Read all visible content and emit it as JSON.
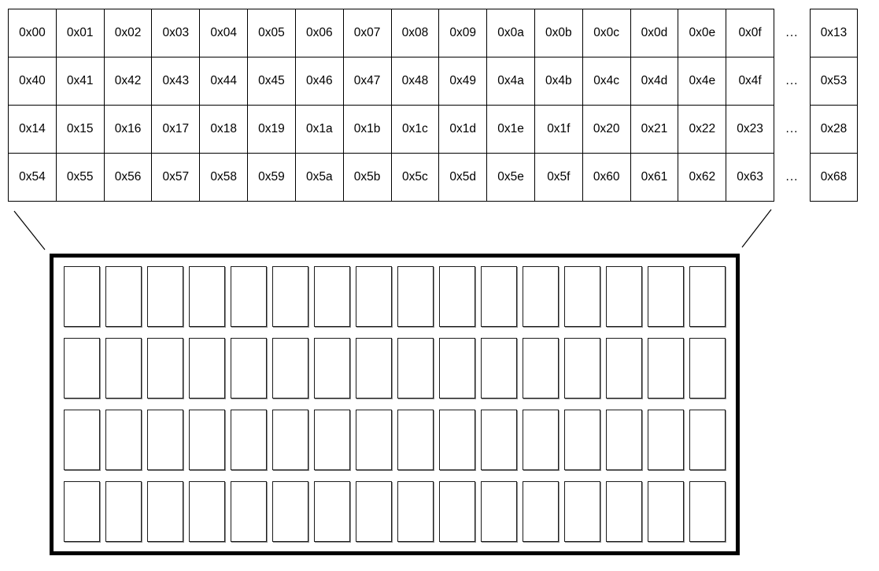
{
  "memtable": {
    "rows": [
      {
        "cells": [
          "0x00",
          "0x01",
          "0x02",
          "0x03",
          "0x04",
          "0x05",
          "0x06",
          "0x07",
          "0x08",
          "0x09",
          "0x0a",
          "0x0b",
          "0x0c",
          "0x0d",
          "0x0e",
          "0x0f"
        ],
        "ellipsis": "...",
        "tail": "0x13"
      },
      {
        "cells": [
          "0x40",
          "0x41",
          "0x42",
          "0x43",
          "0x44",
          "0x45",
          "0x46",
          "0x47",
          "0x48",
          "0x49",
          "0x4a",
          "0x4b",
          "0x4c",
          "0x4d",
          "0x4e",
          "0x4f"
        ],
        "ellipsis": "...",
        "tail": "0x53"
      },
      {
        "cells": [
          "0x14",
          "0x15",
          "0x16",
          "0x17",
          "0x18",
          "0x19",
          "0x1a",
          "0x1b",
          "0x1c",
          "0x1d",
          "0x1e",
          "0x1f",
          "0x20",
          "0x21",
          "0x22",
          "0x23"
        ],
        "ellipsis": "...",
        "tail": "0x28"
      },
      {
        "cells": [
          "0x54",
          "0x55",
          "0x56",
          "0x57",
          "0x58",
          "0x59",
          "0x5a",
          "0x5b",
          "0x5c",
          "0x5d",
          "0x5e",
          "0x5f",
          "0x60",
          "0x61",
          "0x62",
          "0x63"
        ],
        "ellipsis": "...",
        "tail": "0x68"
      }
    ]
  },
  "chip": {
    "rows": 4,
    "cols": 16
  },
  "colors": {
    "line": "#000000",
    "background": "#ffffff",
    "chip_cell_border": "#1c1c1c",
    "chip_cell_shadow": "#8a8a8a"
  }
}
